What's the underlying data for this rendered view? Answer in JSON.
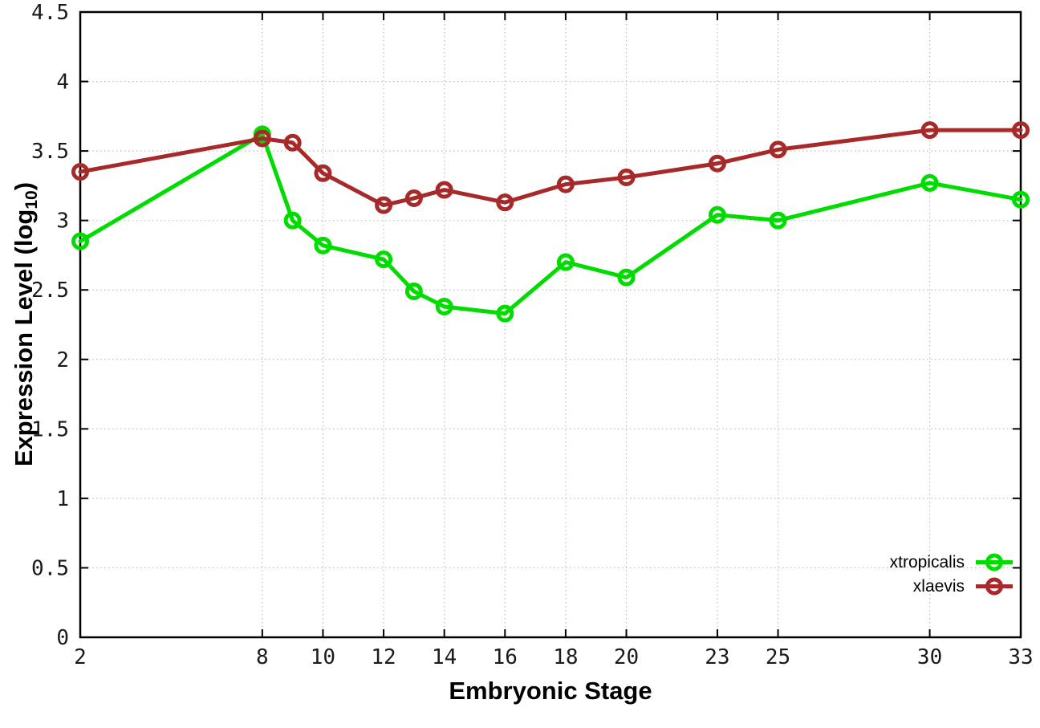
{
  "figure": {
    "x_title": "Embryonic Stage",
    "y_title_prefix": "Expression Level (log",
    "y_title_sub": "10",
    "y_title_suffix": ")"
  },
  "chart_data": {
    "type": "line",
    "title": "",
    "xlabel": "Embryonic Stage",
    "ylabel": "Expression Level (log10)",
    "xlim": [
      2,
      33
    ],
    "ylim": [
      0,
      4.5
    ],
    "grid": true,
    "legend_position": "inside-bottom-right",
    "x_ticks": [
      2,
      8,
      10,
      12,
      14,
      16,
      18,
      20,
      23,
      25,
      30,
      33
    ],
    "x_tick_labels": [
      "2",
      "8",
      "10",
      "12",
      "14",
      "16",
      "18",
      "20",
      "23",
      "25",
      "30",
      "33"
    ],
    "y_ticks": [
      0,
      0.5,
      1,
      1.5,
      2,
      2.5,
      3,
      3.5,
      4,
      4.5
    ],
    "y_tick_labels": [
      "0",
      "0.5",
      "1",
      "1.5",
      "2",
      "2.5",
      "3",
      "3.5",
      "4",
      "4.5"
    ],
    "x": [
      2,
      8,
      9,
      10,
      12,
      13,
      14,
      16,
      18,
      20,
      23,
      25,
      30,
      33
    ],
    "series": [
      {
        "name": "xtropicalis",
        "color": "#00dc00",
        "marker": "open-circle",
        "values": [
          2.85,
          3.62,
          3.0,
          2.82,
          2.72,
          2.49,
          2.38,
          2.33,
          2.7,
          2.59,
          3.04,
          3.0,
          3.27,
          3.15
        ]
      },
      {
        "name": "xlaevis",
        "color": "#a62a2a",
        "marker": "open-circle",
        "values": [
          3.35,
          3.59,
          3.56,
          3.34,
          3.11,
          3.16,
          3.22,
          3.13,
          3.26,
          3.31,
          3.41,
          3.51,
          3.65,
          3.65
        ]
      }
    ]
  },
  "colors": {
    "axis": "#000000",
    "grid": "#bdbdbd",
    "background": "#ffffff"
  }
}
